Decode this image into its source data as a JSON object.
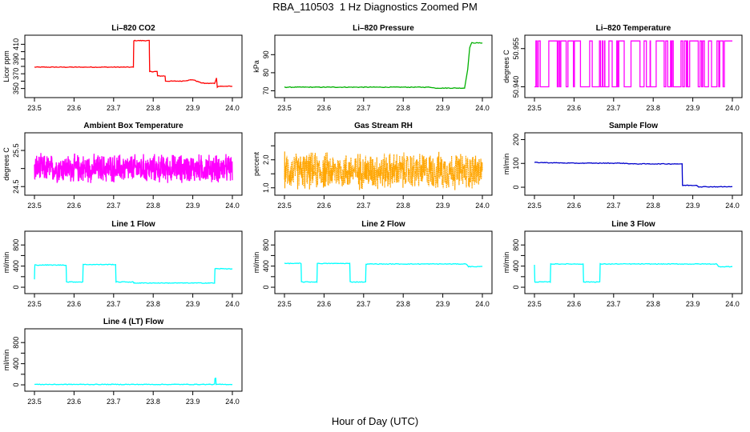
{
  "figure": {
    "title": "RBA_110503  1 Hz Diagnostics Zoomed PM",
    "xlabel": "Hour of Day (UTC)"
  },
  "chart_data": [
    {
      "id": "co2",
      "type": "line",
      "title": "Li–820 CO2",
      "ylabel": "Licor ppm",
      "color": "#ff0000",
      "xlim": [
        23.5,
        24.0
      ],
      "ylim": [
        342,
        418
      ],
      "xticks": [
        "23.5",
        "23.6",
        "23.7",
        "23.8",
        "23.9",
        "24.0"
      ],
      "yticks": [
        350,
        360,
        370,
        380,
        390,
        400,
        410
      ],
      "ytick_labels": [
        "350",
        "",
        "370",
        "",
        "390",
        "",
        "410"
      ],
      "series": [
        {
          "name": "CO2",
          "x": [
            23.5,
            23.75,
            23.751,
            23.79,
            23.791,
            23.81,
            23.811,
            23.83,
            23.831,
            23.87,
            23.9,
            23.92,
            23.93,
            23.955,
            23.96,
            23.962,
            23.965,
            24.0
          ],
          "y": [
            379,
            379,
            415,
            415,
            373,
            373,
            367,
            367,
            360,
            360,
            362,
            358,
            357,
            357,
            364,
            352,
            353,
            353
          ]
        }
      ]
    },
    {
      "id": "pressure",
      "type": "line",
      "title": "Li–820 Pressure",
      "ylabel": "kPa",
      "color": "#00b000",
      "xlim": [
        23.5,
        24.0
      ],
      "ylim": [
        68,
        99
      ],
      "xticks": [
        "23.5",
        "23.6",
        "23.7",
        "23.8",
        "23.9",
        "24.0"
      ],
      "yticks": [
        70,
        80,
        90
      ],
      "ytick_labels": [
        "70",
        "80",
        "90"
      ],
      "series": [
        {
          "name": "Pressure",
          "x": [
            23.5,
            23.87,
            23.88,
            23.955,
            23.963,
            23.968,
            23.973,
            24.0
          ],
          "y": [
            72,
            72,
            71.5,
            71.5,
            82,
            94,
            96.5,
            96.5
          ]
        }
      ]
    },
    {
      "id": "temp",
      "type": "line",
      "title": "Li–820 Temperature",
      "ylabel": "degrees C",
      "color": "#ff00ff",
      "xlim": [
        23.5,
        24.0
      ],
      "ylim": [
        50.937,
        50.959
      ],
      "xticks": [
        "23.5",
        "23.6",
        "23.7",
        "23.8",
        "23.9",
        "24.0"
      ],
      "yticks": [
        50.94,
        50.955
      ],
      "ytick_labels": [
        "50.940",
        "50.955"
      ],
      "description_series": "toggles between two levels (50.940 / 50.958)",
      "series": [
        {
          "name": "Temperature",
          "low": 50.94,
          "high": 50.958
        }
      ]
    },
    {
      "id": "ambient",
      "type": "line",
      "title": "Ambient Box Temperature",
      "ylabel": "degrees C",
      "color": "#ff00ff",
      "xlim": [
        23.5,
        24.0
      ],
      "ylim": [
        24.35,
        25.9
      ],
      "xticks": [
        "23.5",
        "23.6",
        "23.7",
        "23.8",
        "23.9",
        "24.0"
      ],
      "yticks": [
        24.5,
        25.0,
        25.5
      ],
      "ytick_labels": [
        "24.5",
        "",
        "25.5"
      ],
      "series": [
        {
          "name": "Ambient",
          "center": 25.0,
          "spread": 0.45
        }
      ]
    },
    {
      "id": "rh",
      "type": "line",
      "title": "Gas Stream RH",
      "ylabel": "percent",
      "color": "#ffa500",
      "xlim": [
        23.5,
        24.0
      ],
      "ylim": [
        0.85,
        2.85
      ],
      "xticks": [
        "23.5",
        "23.6",
        "23.7",
        "23.8",
        "23.9",
        "24.0"
      ],
      "yticks": [
        1.0,
        1.5,
        2.0,
        2.5
      ],
      "ytick_labels": [
        "1.0",
        "",
        "2.0",
        ""
      ],
      "series": [
        {
          "name": "RH",
          "center": 1.6,
          "spread": 0.75
        }
      ]
    },
    {
      "id": "sample",
      "type": "line",
      "title": "Sample Flow",
      "ylabel": "ml/min",
      "color": "#0000cc",
      "xlim": [
        23.5,
        24.0
      ],
      "ylim": [
        -20,
        215
      ],
      "xticks": [
        "23.5",
        "23.6",
        "23.7",
        "23.8",
        "23.9",
        "24.0"
      ],
      "yticks": [
        0,
        100,
        200
      ],
      "ytick_labels": [
        "0",
        "100",
        "200"
      ],
      "series": [
        {
          "name": "Sample",
          "x": [
            23.5,
            23.6,
            23.72,
            23.75,
            23.873,
            23.874,
            23.91,
            23.915,
            24.0
          ],
          "y": [
            104,
            101,
            101,
            98,
            98,
            8,
            8,
            2,
            2
          ]
        }
      ]
    },
    {
      "id": "line1",
      "type": "line",
      "title": "Line 1 Flow",
      "ylabel": "ml/min",
      "color": "#00ffff",
      "xlim": [
        23.5,
        24.0
      ],
      "ylim": [
        -60,
        1000
      ],
      "xticks": [
        "23.5",
        "23.6",
        "23.7",
        "23.8",
        "23.9",
        "24.0"
      ],
      "yticks": [
        0,
        200,
        400,
        600,
        800
      ],
      "ytick_labels": [
        "0",
        "",
        "400",
        "",
        "800"
      ],
      "series": [
        {
          "name": "Line 1",
          "x": [
            23.5,
            23.501,
            23.58,
            23.581,
            23.622,
            23.623,
            23.705,
            23.706,
            23.75,
            23.751,
            23.955,
            23.956,
            24.0
          ],
          "y": [
            150,
            420,
            420,
            100,
            100,
            430,
            430,
            100,
            100,
            80,
            80,
            350,
            350
          ]
        }
      ]
    },
    {
      "id": "line2",
      "type": "line",
      "title": "Line 2 Flow",
      "ylabel": "ml/min",
      "color": "#00ffff",
      "xlim": [
        23.5,
        24.0
      ],
      "ylim": [
        -60,
        1000
      ],
      "xticks": [
        "23.5",
        "23.6",
        "23.7",
        "23.8",
        "23.9",
        "24.0"
      ],
      "yticks": [
        0,
        200,
        400,
        600,
        800
      ],
      "ytick_labels": [
        "0",
        "",
        "400",
        "",
        "800"
      ],
      "series": [
        {
          "name": "Line 2",
          "x": [
            23.5,
            23.542,
            23.543,
            23.582,
            23.583,
            23.665,
            23.666,
            23.705,
            23.706,
            23.96,
            23.965,
            24.0
          ],
          "y": [
            450,
            450,
            100,
            100,
            450,
            450,
            100,
            100,
            440,
            440,
            390,
            390
          ]
        }
      ]
    },
    {
      "id": "line3",
      "type": "line",
      "title": "Line 3 Flow",
      "ylabel": "ml/min",
      "color": "#00ffff",
      "xlim": [
        23.5,
        24.0
      ],
      "ylim": [
        -60,
        1000
      ],
      "xticks": [
        "23.5",
        "23.6",
        "23.7",
        "23.8",
        "23.9",
        "24.0"
      ],
      "yticks": [
        0,
        200,
        400,
        600,
        800
      ],
      "ytick_labels": [
        "0",
        "",
        "400",
        "",
        "800"
      ],
      "series": [
        {
          "name": "Line 3",
          "x": [
            23.5,
            23.501,
            23.54,
            23.541,
            23.623,
            23.624,
            23.665,
            23.666,
            23.96,
            23.965,
            24.0
          ],
          "y": [
            430,
            100,
            100,
            440,
            440,
            100,
            100,
            440,
            440,
            390,
            390
          ]
        }
      ]
    },
    {
      "id": "line4",
      "type": "line",
      "title": "Line 4 (LT) Flow",
      "ylabel": "ml/min",
      "color": "#00ffff",
      "xlim": [
        23.5,
        24.0
      ],
      "ylim": [
        -60,
        1000
      ],
      "xticks": [
        "23.5",
        "23.6",
        "23.7",
        "23.8",
        "23.9",
        "24.0"
      ],
      "yticks": [
        0,
        200,
        400,
        600,
        800
      ],
      "ytick_labels": [
        "0",
        "",
        "400",
        "",
        "800"
      ],
      "series": [
        {
          "name": "Line 4",
          "x": [
            23.5,
            23.955,
            23.956,
            23.958,
            23.959,
            24.0
          ],
          "y": [
            8,
            8,
            120,
            120,
            8,
            8
          ]
        }
      ]
    }
  ]
}
